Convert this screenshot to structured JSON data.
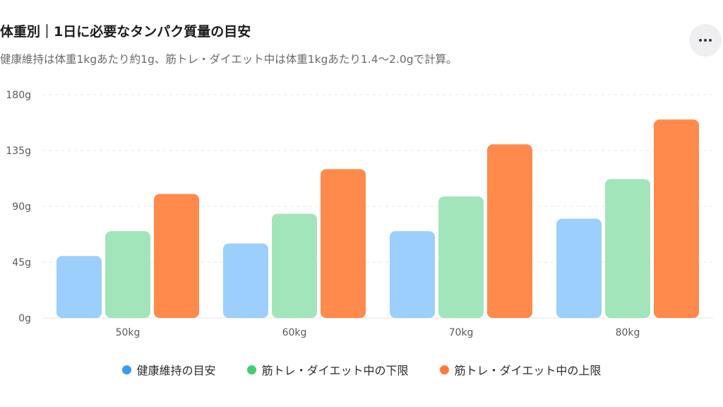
{
  "header": {
    "title": "体重別｜1日に必要なタンパク質量の目安",
    "subtitle": "健康維持は体重1kgあたり約1g、筋トレ・ダイエット中は体重1kgあたり1.4〜2.0gで計算。"
  },
  "menu": {
    "icon": "more-horizontal-icon"
  },
  "chart_data": {
    "type": "bar",
    "title": "体重別｜1日に必要なタンパク質量の目安",
    "subtitle": "健康維持は体重1kgあたり約1g、筋トレ・ダイエット中は体重1kgあたり1.4〜2.0gで計算。",
    "xlabel": "",
    "ylabel": "",
    "categories": [
      "50kg",
      "60kg",
      "70kg",
      "80kg"
    ],
    "y_ticks": [
      "0g",
      "45g",
      "90g",
      "135g",
      "180g"
    ],
    "ylim": [
      0,
      180
    ],
    "grid": true,
    "legend_position": "bottom",
    "series": [
      {
        "name": "健康維持の目安",
        "values": [
          50,
          60,
          70,
          80
        ],
        "color": "#9ccffb",
        "legend_color": "#3a9bf5"
      },
      {
        "name": "筋トレ・ダイエット中の下限",
        "values": [
          70,
          84,
          98,
          112
        ],
        "color": "#a3e5bb",
        "legend_color": "#3fcf74"
      },
      {
        "name": "筋トレ・ダイエット中の上限",
        "values": [
          100,
          120,
          140,
          160
        ],
        "color": "#ff8a4c",
        "legend_color": "#ff7a3d"
      }
    ]
  }
}
